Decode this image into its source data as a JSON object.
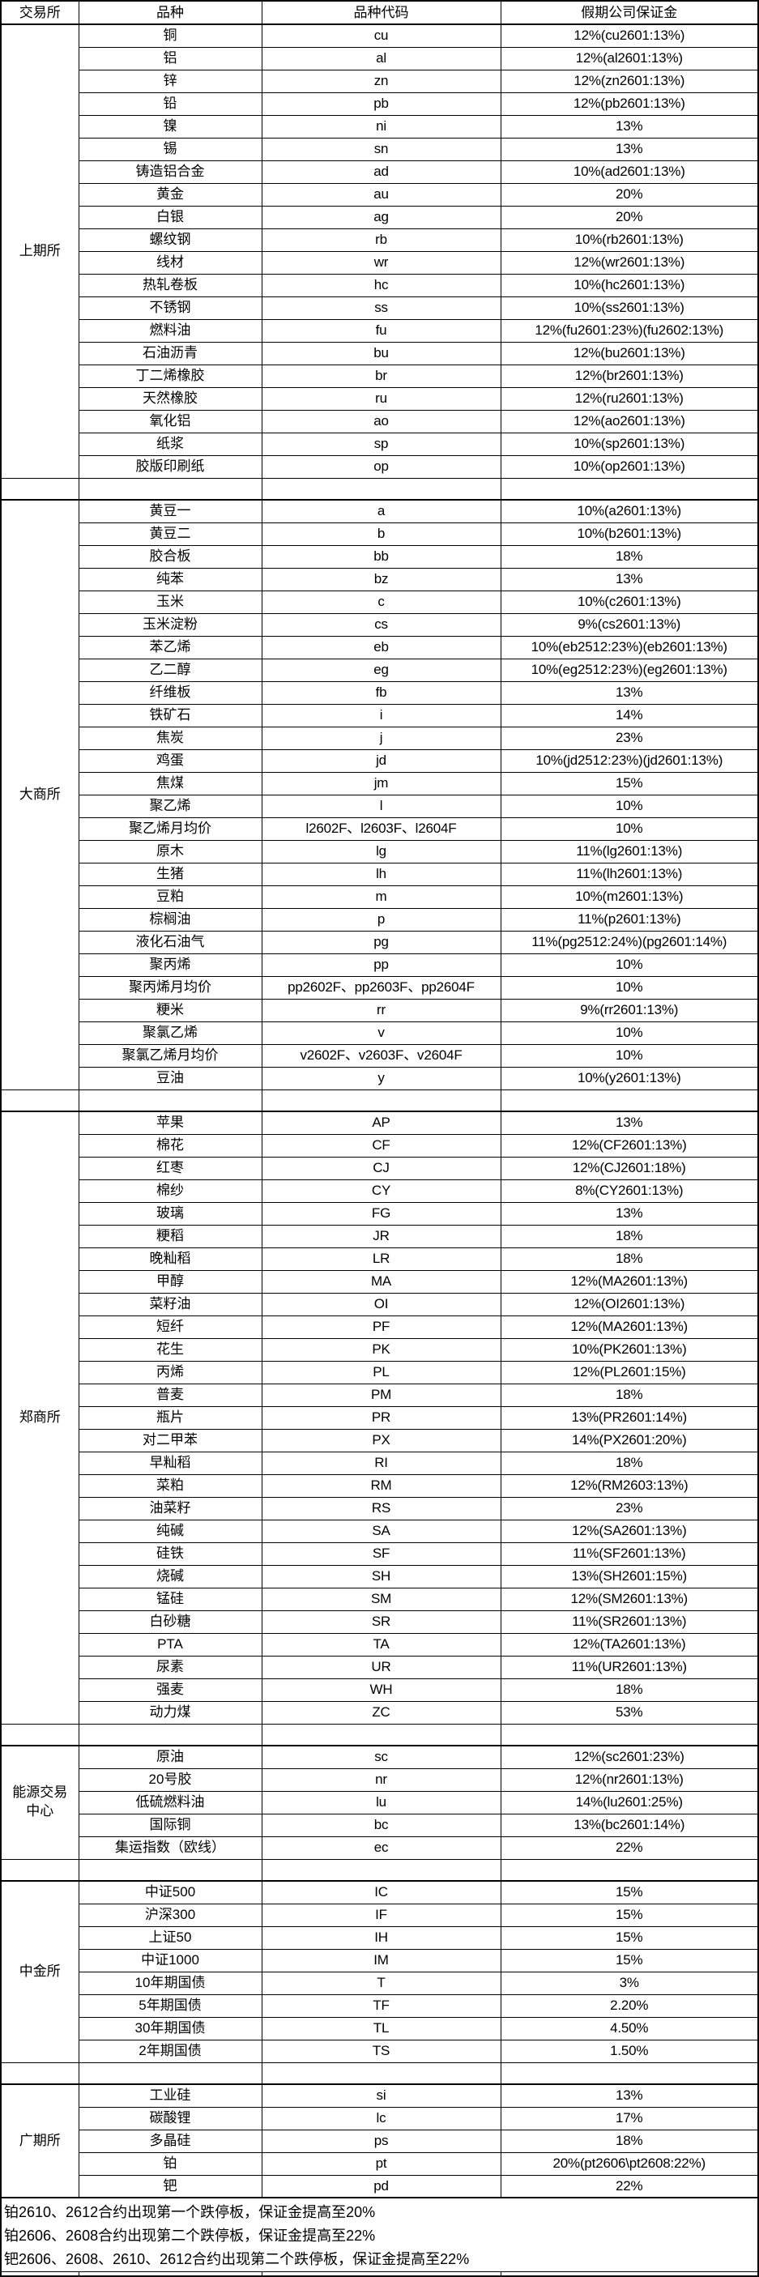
{
  "table": {
    "columns": [
      "交易所",
      "品种",
      "品种代码",
      "假期公司保证金"
    ]
  },
  "sections": [
    {
      "exchange": "上期所",
      "rows": [
        {
          "variety": "铜",
          "code": "cu",
          "margin": "12%(cu2601:13%)"
        },
        {
          "variety": "铝",
          "code": "al",
          "margin": "12%(al2601:13%)"
        },
        {
          "variety": "锌",
          "code": "zn",
          "margin": "12%(zn2601:13%)"
        },
        {
          "variety": "铅",
          "code": "pb",
          "margin": "12%(pb2601:13%)"
        },
        {
          "variety": "镍",
          "code": "ni",
          "margin": "13%"
        },
        {
          "variety": "锡",
          "code": "sn",
          "margin": "13%"
        },
        {
          "variety": "铸造铝合金",
          "code": "ad",
          "margin": "10%(ad2601:13%)"
        },
        {
          "variety": "黄金",
          "code": "au",
          "margin": "20%"
        },
        {
          "variety": "白银",
          "code": "ag",
          "margin": "20%"
        },
        {
          "variety": "螺纹钢",
          "code": "rb",
          "margin": "10%(rb2601:13%)"
        },
        {
          "variety": "线材",
          "code": "wr",
          "margin": "12%(wr2601:13%)"
        },
        {
          "variety": "热轧卷板",
          "code": "hc",
          "margin": "10%(hc2601:13%)"
        },
        {
          "variety": "不锈钢",
          "code": "ss",
          "margin": "10%(ss2601:13%)"
        },
        {
          "variety": "燃料油",
          "code": "fu",
          "margin": "12%(fu2601:23%)(fu2602:13%)"
        },
        {
          "variety": "石油沥青",
          "code": "bu",
          "margin": "12%(bu2601:13%)"
        },
        {
          "variety": "丁二烯橡胶",
          "code": "br",
          "margin": "12%(br2601:13%)"
        },
        {
          "variety": "天然橡胶",
          "code": "ru",
          "margin": "12%(ru2601:13%)"
        },
        {
          "variety": "氧化铝",
          "code": "ao",
          "margin": "12%(ao2601:13%)"
        },
        {
          "variety": "纸浆",
          "code": "sp",
          "margin": "10%(sp2601:13%)"
        },
        {
          "variety": "胶版印刷纸",
          "code": "op",
          "margin": "10%(op2601:13%)"
        }
      ]
    },
    {
      "exchange": "大商所",
      "rows": [
        {
          "variety": "黄豆一",
          "code": "a",
          "margin": "10%(a2601:13%)"
        },
        {
          "variety": "黄豆二",
          "code": "b",
          "margin": "10%(b2601:13%)"
        },
        {
          "variety": "胶合板",
          "code": "bb",
          "margin": "18%"
        },
        {
          "variety": "纯苯",
          "code": "bz",
          "margin": "13%"
        },
        {
          "variety": "玉米",
          "code": "c",
          "margin": "10%(c2601:13%)"
        },
        {
          "variety": "玉米淀粉",
          "code": "cs",
          "margin": "9%(cs2601:13%)"
        },
        {
          "variety": "苯乙烯",
          "code": "eb",
          "margin": "10%(eb2512:23%)(eb2601:13%)"
        },
        {
          "variety": "乙二醇",
          "code": "eg",
          "margin": "10%(eg2512:23%)(eg2601:13%)"
        },
        {
          "variety": "纤维板",
          "code": "fb",
          "margin": "13%"
        },
        {
          "variety": "铁矿石",
          "code": "i",
          "margin": "14%"
        },
        {
          "variety": "焦炭",
          "code": "j",
          "margin": "23%"
        },
        {
          "variety": "鸡蛋",
          "code": "jd",
          "margin": "10%(jd2512:23%)(jd2601:13%)"
        },
        {
          "variety": "焦煤",
          "code": "jm",
          "margin": "15%"
        },
        {
          "variety": "聚乙烯",
          "code": "l",
          "margin": "10%"
        },
        {
          "variety": "聚乙烯月均价",
          "code": "l2602F、l2603F、l2604F",
          "margin": "10%"
        },
        {
          "variety": "原木",
          "code": "lg",
          "margin": "11%(lg2601:13%)"
        },
        {
          "variety": "生猪",
          "code": "lh",
          "margin": "11%(lh2601:13%)"
        },
        {
          "variety": "豆粕",
          "code": "m",
          "margin": "10%(m2601:13%)"
        },
        {
          "variety": "棕榈油",
          "code": "p",
          "margin": "11%(p2601:13%)"
        },
        {
          "variety": "液化石油气",
          "code": "pg",
          "margin": "11%(pg2512:24%)(pg2601:14%)"
        },
        {
          "variety": "聚丙烯",
          "code": "pp",
          "margin": "10%"
        },
        {
          "variety": "聚丙烯月均价",
          "code": "pp2602F、pp2603F、pp2604F",
          "margin": "10%"
        },
        {
          "variety": "粳米",
          "code": "rr",
          "margin": "9%(rr2601:13%)"
        },
        {
          "variety": "聚氯乙烯",
          "code": "v",
          "margin": "10%"
        },
        {
          "variety": "聚氯乙烯月均价",
          "code": "v2602F、v2603F、v2604F",
          "margin": "10%"
        },
        {
          "variety": "豆油",
          "code": "y",
          "margin": "10%(y2601:13%)"
        }
      ]
    },
    {
      "exchange": "郑商所",
      "rows": [
        {
          "variety": "苹果",
          "code": "AP",
          "margin": "13%"
        },
        {
          "variety": "棉花",
          "code": "CF",
          "margin": "12%(CF2601:13%)"
        },
        {
          "variety": "红枣",
          "code": "CJ",
          "margin": "12%(CJ2601:18%)"
        },
        {
          "variety": "棉纱",
          "code": "CY",
          "margin": "8%(CY2601:13%)"
        },
        {
          "variety": "玻璃",
          "code": "FG",
          "margin": "13%"
        },
        {
          "variety": "粳稻",
          "code": "JR",
          "margin": "18%"
        },
        {
          "variety": "晚籼稻",
          "code": "LR",
          "margin": "18%"
        },
        {
          "variety": "甲醇",
          "code": "MA",
          "margin": "12%(MA2601:13%)"
        },
        {
          "variety": "菜籽油",
          "code": "OI",
          "margin": "12%(OI2601:13%)"
        },
        {
          "variety": "短纤",
          "code": "PF",
          "margin": "12%(MA2601:13%)"
        },
        {
          "variety": "花生",
          "code": "PK",
          "margin": "10%(PK2601:13%)"
        },
        {
          "variety": "丙烯",
          "code": "PL",
          "margin": "12%(PL2601:15%)"
        },
        {
          "variety": "普麦",
          "code": "PM",
          "margin": "18%"
        },
        {
          "variety": "瓶片",
          "code": "PR",
          "margin": "13%(PR2601:14%)"
        },
        {
          "variety": "对二甲苯",
          "code": "PX",
          "margin": "14%(PX2601:20%)"
        },
        {
          "variety": "早籼稻",
          "code": "RI",
          "margin": "18%"
        },
        {
          "variety": "菜粕",
          "code": "RM",
          "margin": "12%(RM2603:13%)"
        },
        {
          "variety": "油菜籽",
          "code": "RS",
          "margin": "23%"
        },
        {
          "variety": "纯碱",
          "code": "SA",
          "margin": "12%(SA2601:13%)"
        },
        {
          "variety": "硅铁",
          "code": "SF",
          "margin": "11%(SF2601:13%)"
        },
        {
          "variety": "烧碱",
          "code": "SH",
          "margin": "13%(SH2601:15%)"
        },
        {
          "variety": "锰硅",
          "code": "SM",
          "margin": "12%(SM2601:13%)"
        },
        {
          "variety": "白砂糖",
          "code": "SR",
          "margin": "11%(SR2601:13%)"
        },
        {
          "variety": "PTA",
          "code": "TA",
          "margin": "12%(TA2601:13%)"
        },
        {
          "variety": "尿素",
          "code": "UR",
          "margin": "11%(UR2601:13%)"
        },
        {
          "variety": "强麦",
          "code": "WH",
          "margin": "18%"
        },
        {
          "variety": "动力煤",
          "code": "ZC",
          "margin": "53%"
        }
      ]
    },
    {
      "exchange": "能源交易\n中心",
      "rows": [
        {
          "variety": "原油",
          "code": "sc",
          "margin": "12%(sc2601:23%)"
        },
        {
          "variety": "20号胶",
          "code": "nr",
          "margin": "12%(nr2601:13%)"
        },
        {
          "variety": "低硫燃料油",
          "code": "lu",
          "margin": "14%(lu2601:25%)"
        },
        {
          "variety": "国际铜",
          "code": "bc",
          "margin": "13%(bc2601:14%)"
        },
        {
          "variety": "集运指数（欧线）",
          "code": "ec",
          "margin": "22%"
        }
      ]
    },
    {
      "exchange": "中金所",
      "rows": [
        {
          "variety": "中证500",
          "code": "IC",
          "margin": "15%"
        },
        {
          "variety": "沪深300",
          "code": "IF",
          "margin": "15%"
        },
        {
          "variety": "上证50",
          "code": "IH",
          "margin": "15%"
        },
        {
          "variety": "中证1000",
          "code": "IM",
          "margin": "15%"
        },
        {
          "variety": "10年期国债",
          "code": "T",
          "margin": "3%"
        },
        {
          "variety": "5年期国债",
          "code": "TF",
          "margin": "2.20%"
        },
        {
          "variety": "30年期国债",
          "code": "TL",
          "margin": "4.50%"
        },
        {
          "variety": "2年期国债",
          "code": "TS",
          "margin": "1.50%"
        }
      ]
    },
    {
      "exchange": "广期所",
      "rows": [
        {
          "variety": "工业硅",
          "code": "si",
          "margin": "13%"
        },
        {
          "variety": "碳酸锂",
          "code": "lc",
          "margin": "17%"
        },
        {
          "variety": "多晶硅",
          "code": "ps",
          "margin": "18%"
        },
        {
          "variety": "铂",
          "code": "pt",
          "margin": "20%(pt2606\\pt2608:22%)"
        },
        {
          "variety": "钯",
          "code": "pd",
          "margin": "22%"
        }
      ]
    }
  ],
  "notes": [
    "铂2610、2612合约出现第一个跌停板，保证金提高至20%",
    "铂2606、2608合约出现第二个跌停板，保证金提高至22%",
    "钯2606、2608、2610、2612合约出现第二个跌停板，保证金提高至22%"
  ]
}
